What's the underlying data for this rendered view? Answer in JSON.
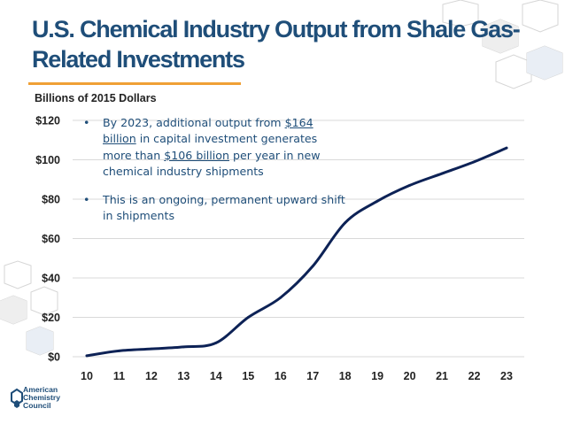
{
  "title": "U.S. Chemical Industry Output from Shale Gas-Related Investments",
  "units_label": "Billions of 2015 Dollars",
  "callout": {
    "bullet_1": {
      "t1": "By 2023, additional output from",
      "t2": "$164 billion",
      "t3": "in capital investment generates more than",
      "t4": "$106 billion",
      "t5": "per year in new chemical industry shipments"
    },
    "bullet_2": "This is an ongoing, permanent upward shift in shipments",
    "bullet_symbol": "•"
  },
  "logo": {
    "line1": "American",
    "line2": "Chemistry",
    "line3": "Council"
  },
  "colors": {
    "title": "#1f4e79",
    "line": "#0d2256",
    "accent": "#f0a035",
    "grid": "#d9d9d9"
  },
  "chart_data": {
    "type": "line",
    "x": [
      "10",
      "11",
      "12",
      "13",
      "14",
      "15",
      "16",
      "17",
      "18",
      "19",
      "20",
      "21",
      "22",
      "23"
    ],
    "series": [
      {
        "values": [
          0.5,
          3,
          4,
          5,
          7,
          20,
          30,
          46,
          68,
          79,
          87,
          93,
          99,
          106
        ]
      }
    ],
    "ylabel": "Billions of 2015 Dollars",
    "yticks": [
      "$0",
      "$20",
      "$40",
      "$60",
      "$80",
      "$100",
      "$120"
    ],
    "ylim": [
      0,
      120
    ],
    "grid": true
  }
}
